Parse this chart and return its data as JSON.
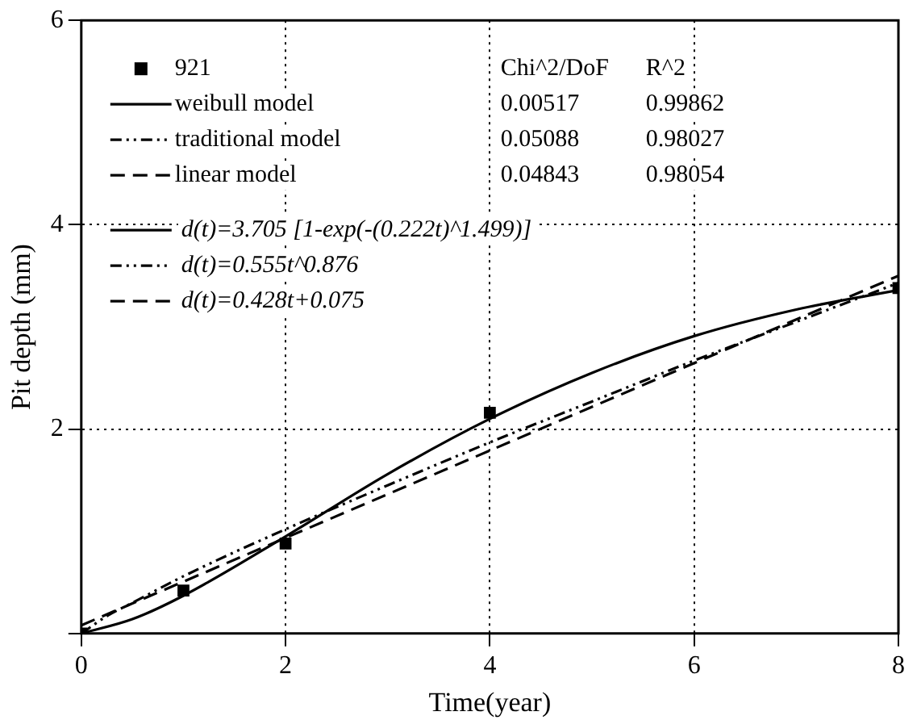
{
  "chart_data": {
    "type": "line",
    "xlabel": "Time(year)",
    "ylabel": "Pit depth (mm)",
    "xlim": [
      0,
      8
    ],
    "xticks": [
      0,
      2,
      4,
      6,
      8
    ],
    "ylim": [
      0,
      6
    ],
    "yticks": [
      {
        "value": 0,
        "label": null
      },
      2,
      4,
      6
    ],
    "grid": true,
    "legend": "top left",
    "series": [
      {
        "name": "921",
        "type": "scatter",
        "marker": "square",
        "color": "#000000",
        "x": [
          0,
          1,
          2,
          4,
          8
        ],
        "values": [
          0,
          0.42,
          0.88,
          2.16,
          3.38
        ]
      },
      {
        "name": "weibull model",
        "type": "line",
        "line_style": "solid",
        "color": "#000000",
        "x": [
          0,
          0.5,
          1,
          2,
          3,
          4,
          5,
          6,
          7,
          8
        ],
        "values": [
          0,
          0.14,
          0.37,
          0.95,
          1.56,
          2.1,
          2.55,
          2.91,
          3.17,
          3.36
        ]
      },
      {
        "name": "traditional model",
        "type": "line",
        "line_style": "dotted",
        "color": "#000000",
        "x": [
          0,
          0.25,
          0.5,
          1,
          2,
          3,
          4,
          5,
          6,
          7,
          8
        ],
        "values": [
          0,
          0.17,
          0.3,
          0.56,
          1.02,
          1.45,
          1.87,
          2.27,
          2.67,
          3.05,
          3.43
        ]
      },
      {
        "name": "linear model",
        "type": "line",
        "line_style": "dashed",
        "color": "#000000",
        "x": [
          0,
          8
        ],
        "values": [
          0.08,
          3.5
        ]
      }
    ],
    "annotations": [
      "Chi^2/DoF",
      "R^2",
      "0.00517",
      "0.99862",
      "0.05088",
      "0.98027",
      "0.04843",
      "0.98054",
      "d(t)=3.705 [1-exp(-(0.222t)^1.499)]",
      "d(t)=0.555t^0.876",
      "d(t)=0.428t+0.075"
    ]
  }
}
